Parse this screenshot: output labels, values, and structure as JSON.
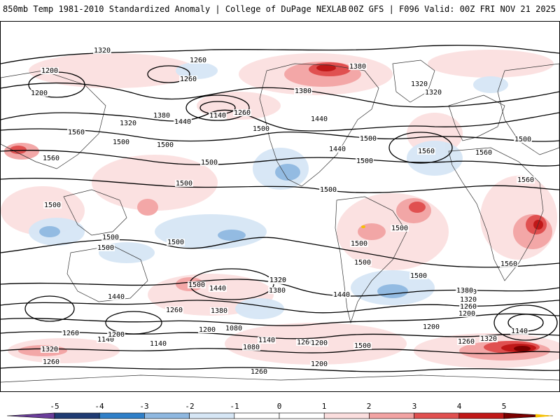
{
  "header": {
    "title_left": "850mb Temp 1981-2010 Standardized Anomaly | College of DuPage NEXLAB",
    "title_right": "00Z GFS | F096 Valid: 00Z FRI NOV 21 2025"
  },
  "colors": {
    "neg5": "#6a3d9a",
    "neg4": "#1f3b73",
    "neg3": "#2f7fc8",
    "neg2": "#8fb8e0",
    "neg1": "#d6e6f5",
    "zero": "#ffffff",
    "pos1": "#fbdede",
    "pos2": "#f2a3a3",
    "pos3": "#e05050",
    "pos4": "#c01818",
    "pos5": "#7a0000",
    "over": "#f5c000"
  },
  "colorbar": {
    "ticks": [
      "-5",
      "-4",
      "-3",
      "-2",
      "-1",
      "0",
      "1",
      "2",
      "3",
      "4",
      "5"
    ]
  },
  "contour_labels": [
    "1320",
    "1260",
    "1200",
    "1260",
    "1380",
    "1320",
    "1320",
    "1200",
    "1140",
    "1260",
    "1380",
    "1440",
    "1320",
    "1380",
    "1440",
    "1560",
    "1500",
    "1500",
    "1560",
    "1500",
    "1560",
    "1440",
    "1500",
    "1560",
    "1500",
    "1560",
    "1500",
    "1500",
    "1500",
    "1500",
    "1500",
    "1500",
    "1500",
    "1500",
    "1500",
    "1500",
    "1500",
    "1560",
    "1500",
    "1440",
    "1320",
    "1380",
    "1260",
    "1200",
    "1140",
    "1080",
    "1080",
    "1140",
    "1260",
    "1200",
    "1500",
    "1440",
    "1500",
    "1380",
    "1320",
    "1260",
    "1200",
    "1200",
    "1140",
    "1260",
    "1320",
    "1380",
    "1260",
    "1320",
    "1200",
    "1140",
    "1260",
    "1200",
    "1380",
    "1440",
    "1320",
    "1260"
  ]
}
